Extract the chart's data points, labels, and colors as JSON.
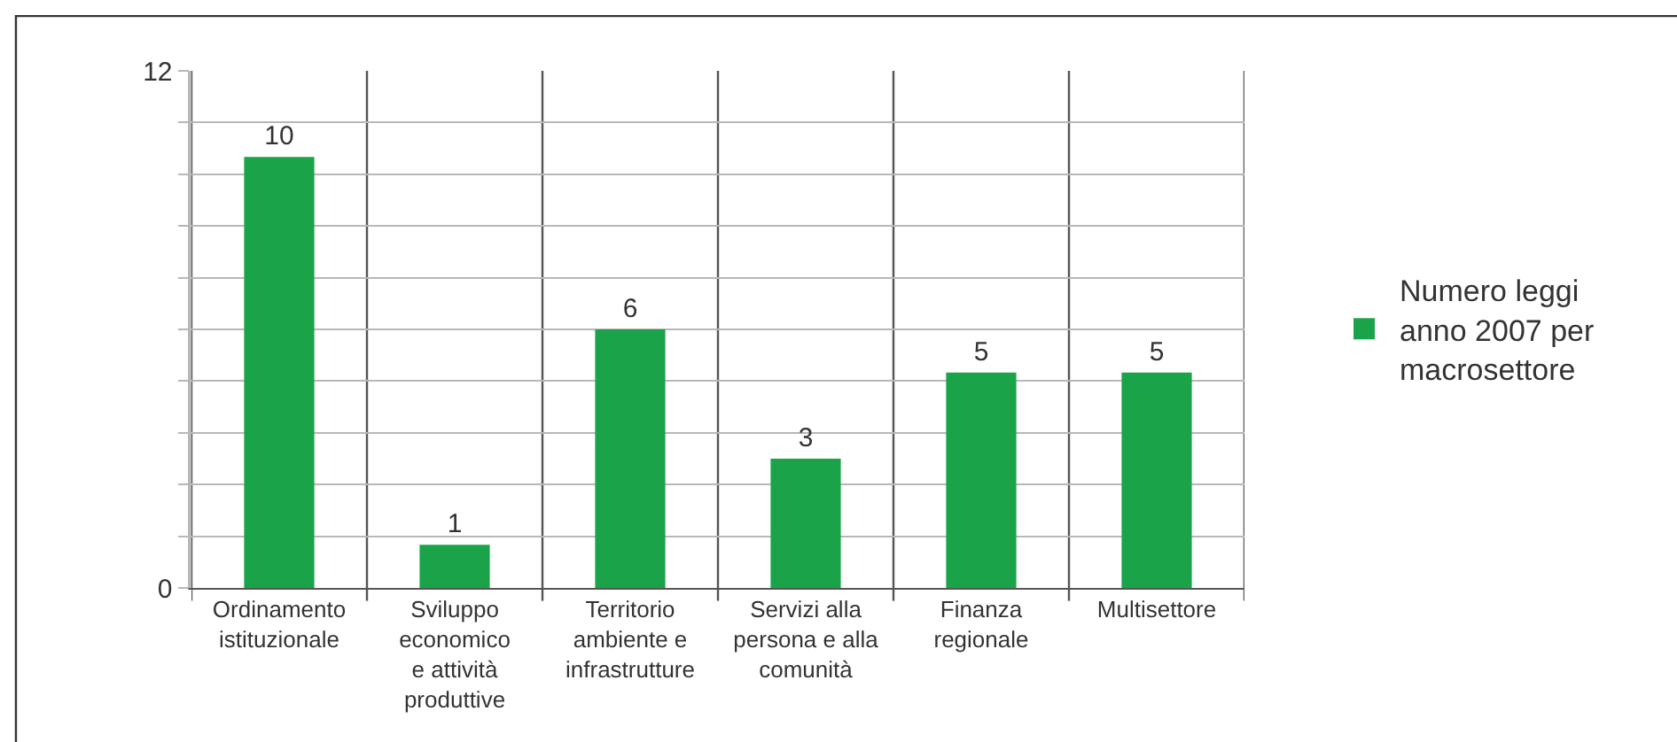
{
  "chart_data": {
    "type": "bar",
    "categories": [
      "Ordinamento\nistituzionale",
      "Sviluppo\neconomico\ne attività\nproduttive",
      "Territorio\nambiente e\ninfrastrutture",
      "Servizi alla\npersona e alla\ncomunità",
      "Finanza\nregionale",
      "Multisettore"
    ],
    "series": [
      {
        "name": "Numero leggi anno 2007 per macrosettore",
        "color": "#1ba34a",
        "values": [
          10,
          1,
          6,
          3,
          5,
          5
        ]
      }
    ],
    "ylim": [
      0,
      12
    ],
    "yticks": [
      0,
      {
        "value": 1.2,
        "label": null
      },
      {
        "value": 2.4,
        "label": null
      },
      {
        "value": 3.6,
        "label": null
      },
      {
        "value": 4.8,
        "label": null
      },
      {
        "value": 6,
        "label": null
      },
      {
        "value": 7.2,
        "label": null
      },
      {
        "value": 8.4,
        "label": null
      },
      {
        "value": 9.6,
        "label": null
      },
      {
        "value": 10.8,
        "label": null
      },
      12
    ],
    "grid": true,
    "legend": "right",
    "data_labels": true
  }
}
